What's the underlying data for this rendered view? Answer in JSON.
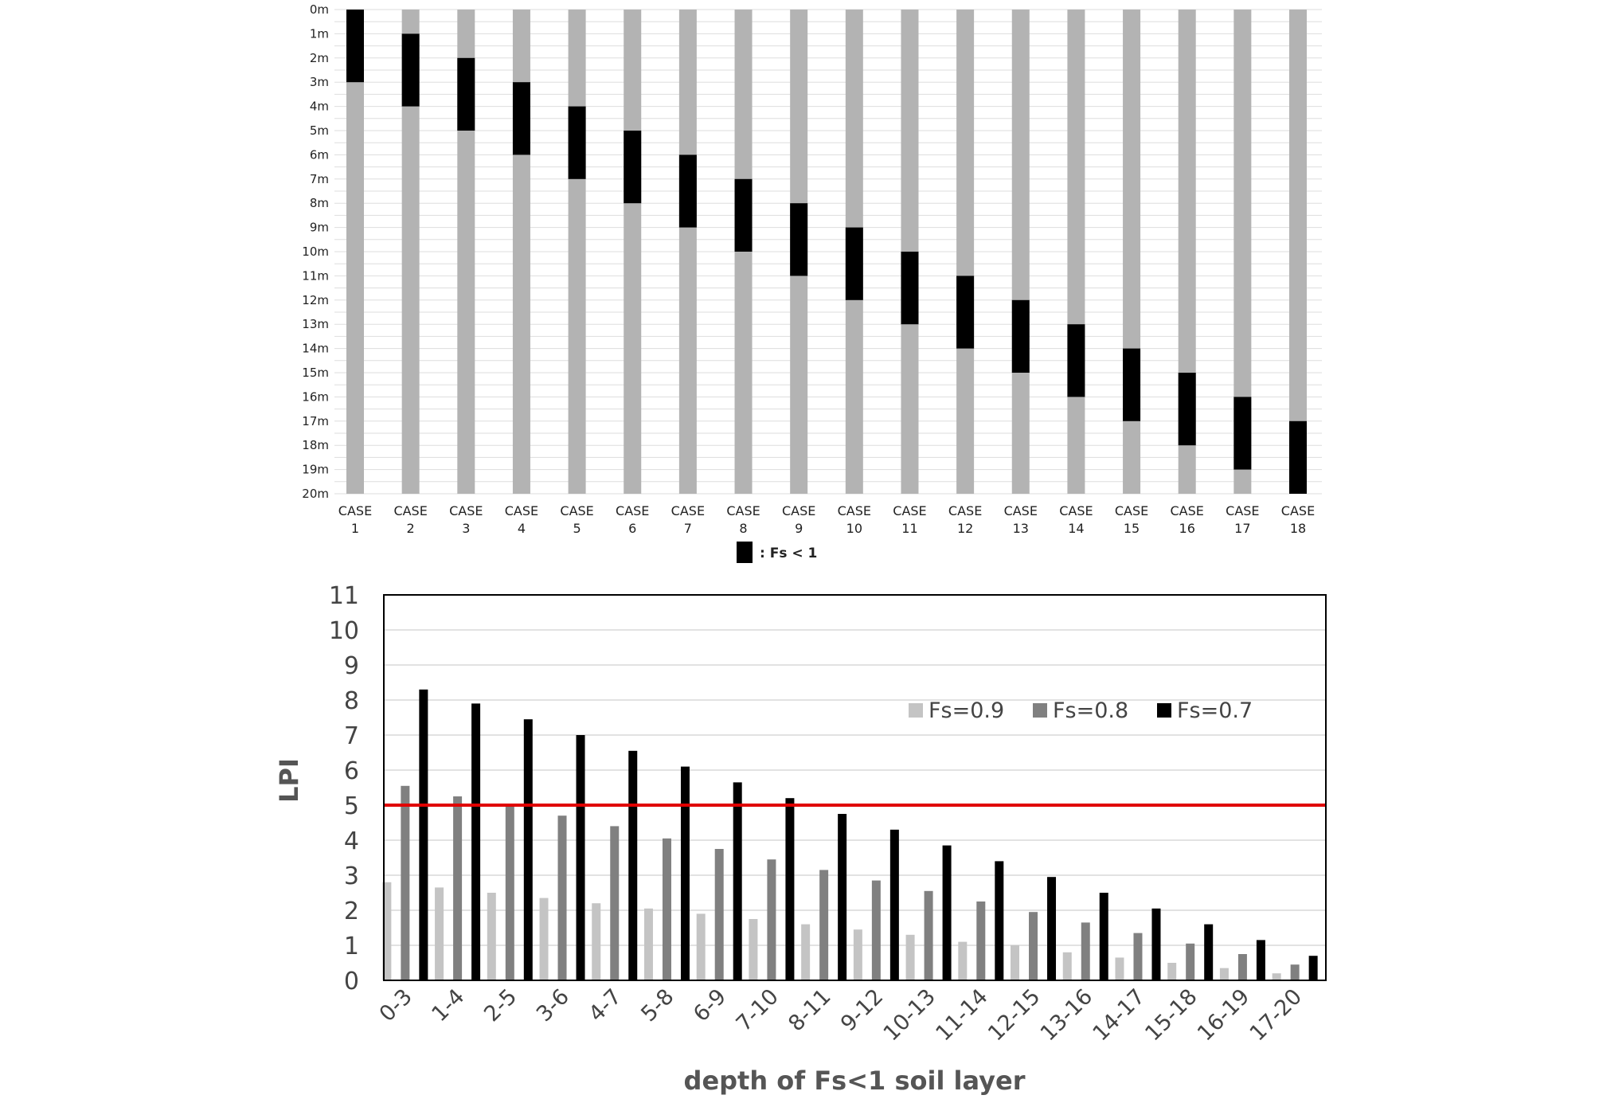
{
  "chart_data": [
    {
      "type": "bar",
      "subtype": "stacked-horizontal-depth-columns",
      "depth_labels": [
        "0m",
        "1m",
        "2m",
        "3m",
        "4m",
        "5m",
        "6m",
        "7m",
        "8m",
        "9m",
        "10m",
        "11m",
        "12m",
        "13m",
        "14m",
        "15m",
        "16m",
        "17m",
        "18m",
        "19m",
        "20m"
      ],
      "ylim": [
        0,
        20
      ],
      "y_inverted": true,
      "categories": [
        {
          "line1": "CASE",
          "line2": "1"
        },
        {
          "line1": "CASE",
          "line2": "2"
        },
        {
          "line1": "CASE",
          "line2": "3"
        },
        {
          "line1": "CASE",
          "line2": "4"
        },
        {
          "line1": "CASE",
          "line2": "5"
        },
        {
          "line1": "CASE",
          "line2": "6"
        },
        {
          "line1": "CASE",
          "line2": "7"
        },
        {
          "line1": "CASE",
          "line2": "8"
        },
        {
          "line1": "CASE",
          "line2": "9"
        },
        {
          "line1": "CASE",
          "line2": "10"
        },
        {
          "line1": "CASE",
          "line2": "11"
        },
        {
          "line1": "CASE",
          "line2": "12"
        },
        {
          "line1": "CASE",
          "line2": "13"
        },
        {
          "line1": "CASE",
          "line2": "14"
        },
        {
          "line1": "CASE",
          "line2": "15"
        },
        {
          "line1": "CASE",
          "line2": "16"
        },
        {
          "line1": "CASE",
          "line2": "17"
        },
        {
          "line1": "CASE",
          "line2": "18"
        }
      ],
      "fs_lt1_layers": [
        [
          0,
          3
        ],
        [
          1,
          4
        ],
        [
          2,
          5
        ],
        [
          3,
          6
        ],
        [
          4,
          7
        ],
        [
          5,
          8
        ],
        [
          6,
          9
        ],
        [
          7,
          10
        ],
        [
          8,
          11
        ],
        [
          9,
          12
        ],
        [
          10,
          13
        ],
        [
          11,
          14
        ],
        [
          12,
          15
        ],
        [
          13,
          16
        ],
        [
          14,
          17
        ],
        [
          15,
          18
        ],
        [
          16,
          19
        ],
        [
          17,
          20
        ]
      ],
      "legend": {
        "label": ": Fs < 1",
        "placement": "bottom-center"
      },
      "grid": true,
      "colors": {
        "soil": "#b3b3b3",
        "liquefiable": "#000000",
        "grid": "#dddddd"
      }
    },
    {
      "type": "bar",
      "subtype": "grouped",
      "title": "",
      "xlabel": "depth of Fs<1 soil layer",
      "ylabel": "LPI",
      "ylim": [
        0,
        11
      ],
      "yticks": [
        "0",
        "1",
        "2",
        "3",
        "4",
        "5",
        "6",
        "7",
        "8",
        "9",
        "10",
        "11"
      ],
      "categories": [
        "0-3",
        "1-4",
        "2-5",
        "3-6",
        "4-7",
        "5-8",
        "6-9",
        "7-10",
        "8-11",
        "9-12",
        "10-13",
        "11-14",
        "12-15",
        "13-16",
        "14-17",
        "15-18",
        "16-19",
        "17-20"
      ],
      "series": [
        {
          "name": "Fs=0.9",
          "color": "#c4c4c4",
          "values": [
            2.8,
            2.65,
            2.5,
            2.35,
            2.2,
            2.05,
            1.9,
            1.75,
            1.6,
            1.45,
            1.3,
            1.1,
            1.0,
            0.8,
            0.65,
            0.5,
            0.35,
            0.2
          ]
        },
        {
          "name": "Fs=0.8",
          "color": "#808080",
          "values": [
            5.55,
            5.25,
            5.0,
            4.7,
            4.4,
            4.05,
            3.75,
            3.45,
            3.15,
            2.85,
            2.55,
            2.25,
            1.95,
            1.65,
            1.35,
            1.05,
            0.75,
            0.45
          ]
        },
        {
          "name": "Fs=0.7",
          "color": "#000000",
          "values": [
            8.3,
            7.9,
            7.45,
            7.0,
            6.55,
            6.1,
            5.65,
            5.2,
            4.75,
            4.3,
            3.85,
            3.4,
            2.95,
            2.5,
            2.05,
            1.6,
            1.15,
            0.7
          ]
        }
      ],
      "reference_line": {
        "value": 5,
        "color": "#e00000"
      },
      "legend": {
        "placement": "top-right"
      },
      "grid": true
    }
  ]
}
